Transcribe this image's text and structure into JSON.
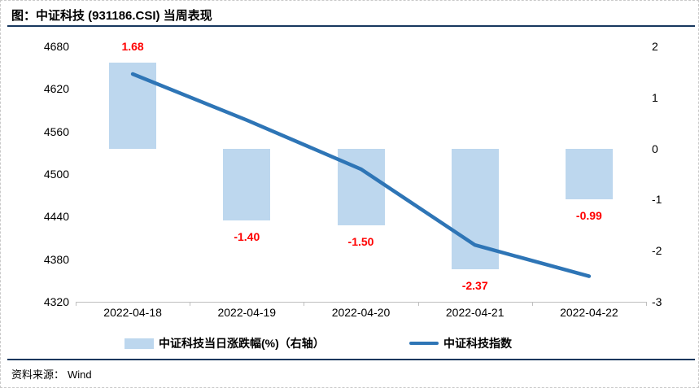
{
  "header": {
    "title": "图：中证科技 (931186.CSI) 当周表现"
  },
  "footer": {
    "source_label": "资料来源：",
    "source_value": "Wind"
  },
  "colors": {
    "bar_fill": "#BDD7EE",
    "line": "#2E75B6",
    "value_label": "#FF0000",
    "axis_line": "#BFBFBF",
    "rule": "#17375E",
    "text": "#000000",
    "border_dash": "#C9C9C9"
  },
  "chart_data": {
    "type": "combo-bar-line",
    "title": "中证科技 (931186.CSI) 当周表现",
    "categories": [
      "2022-04-18",
      "2022-04-19",
      "2022-04-20",
      "2022-04-21",
      "2022-04-22"
    ],
    "series": [
      {
        "name": "中证科技当日涨跌幅(%)（右轴）",
        "type": "bar",
        "axis": "right",
        "values": [
          1.68,
          -1.4,
          -1.5,
          -2.37,
          -0.99
        ],
        "labels": [
          "1.68",
          "-1.40",
          "-1.50",
          "-2.37",
          "-0.99"
        ],
        "color": "#BDD7EE",
        "label_color": "#FF0000"
      },
      {
        "name": "中证科技指数",
        "type": "line",
        "axis": "left",
        "values": [
          4641,
          4576,
          4507,
          4400,
          4356
        ],
        "color": "#2E75B6"
      }
    ],
    "left_axis": {
      "min": 4320,
      "max": 4680,
      "ticks": [
        "4680",
        "4620",
        "4560",
        "4500",
        "4440",
        "4380",
        "4320"
      ]
    },
    "right_axis": {
      "min": -3,
      "max": 2,
      "ticks": [
        "2",
        "1",
        "0",
        "-1",
        "-2",
        "-3"
      ]
    },
    "grid": false,
    "legend_position": "bottom"
  }
}
